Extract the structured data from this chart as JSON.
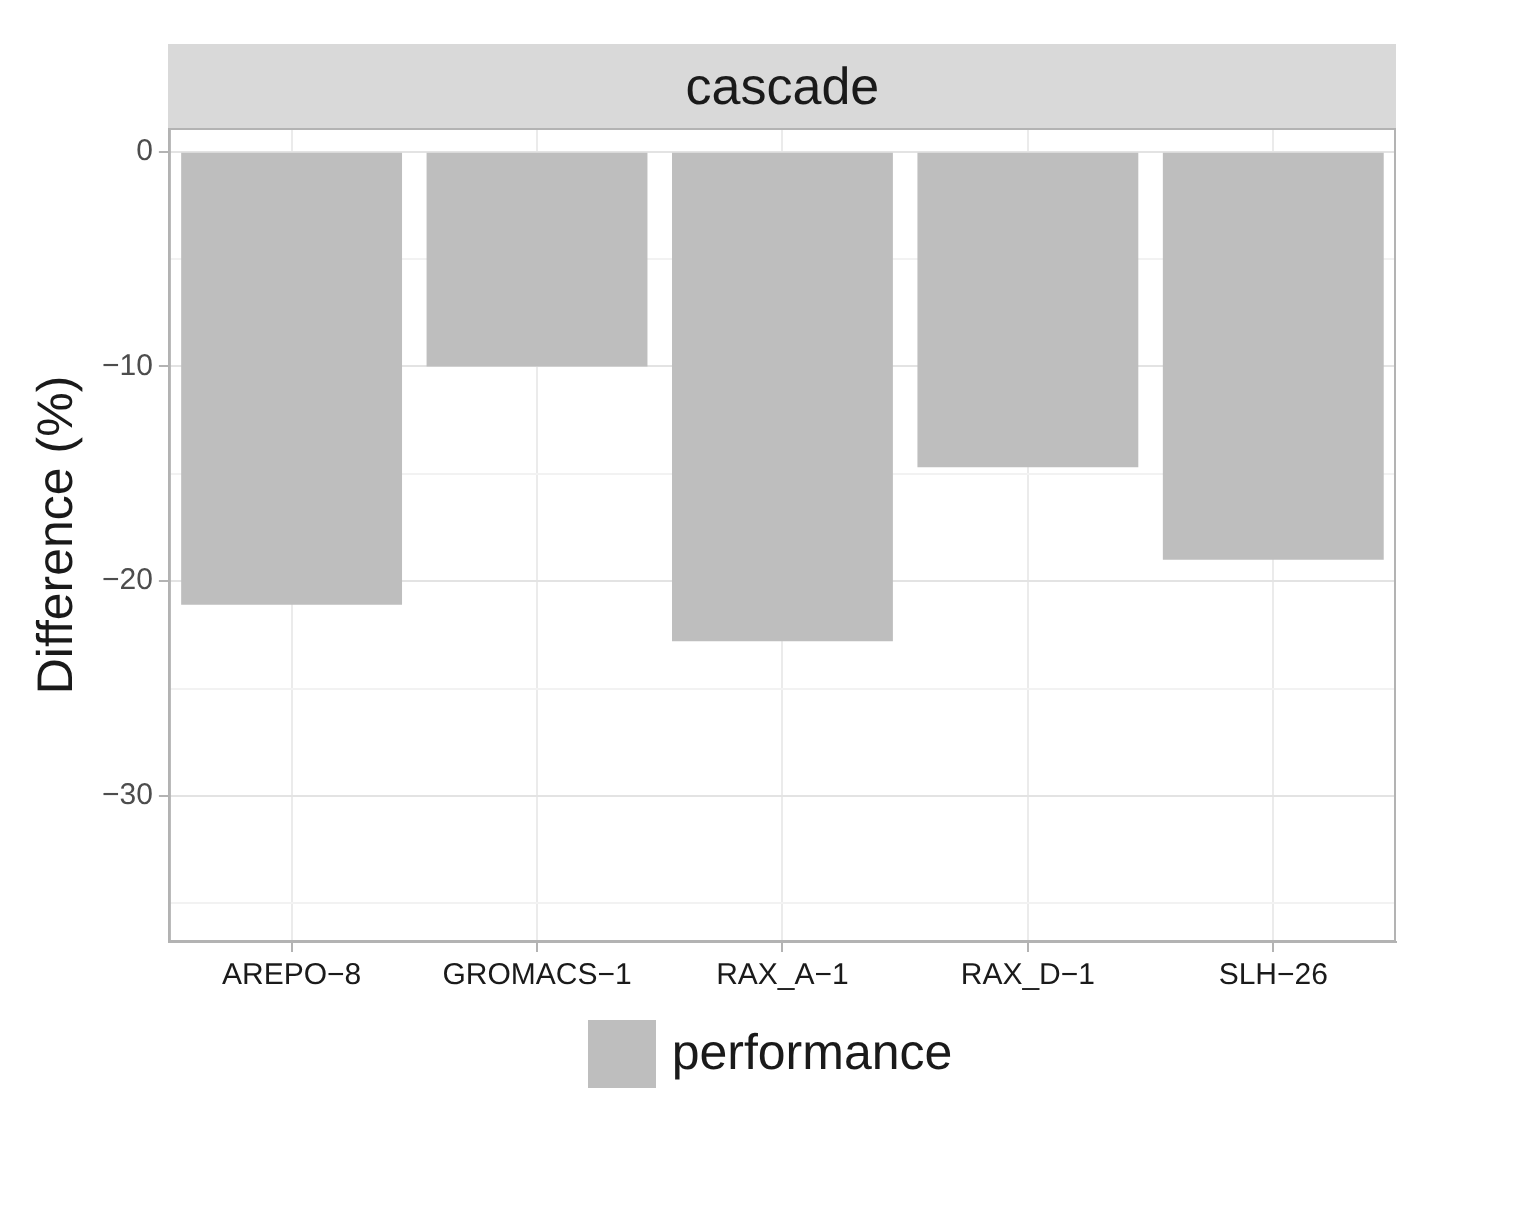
{
  "chart_data": {
    "type": "bar",
    "title": "cascade",
    "ylabel": "Difference (%)",
    "categories": [
      "AREPO−8",
      "GROMACS−1",
      "RAX_A−1",
      "RAX_D−1",
      "SLH−26"
    ],
    "series": [
      {
        "name": "performance",
        "color": "#bebebe",
        "values": [
          -21.1,
          -10.0,
          -22.8,
          -14.7,
          -19.0
        ]
      }
    ],
    "ylim": [
      -36.8,
      1.1
    ],
    "yticks": [
      {
        "value": -35,
        "label": null
      },
      -30,
      {
        "value": -25,
        "label": null
      },
      -20,
      {
        "value": -15,
        "label": null
      },
      -10,
      {
        "value": -5,
        "label": null
      },
      0
    ],
    "grid": true,
    "legend": "bottom"
  }
}
